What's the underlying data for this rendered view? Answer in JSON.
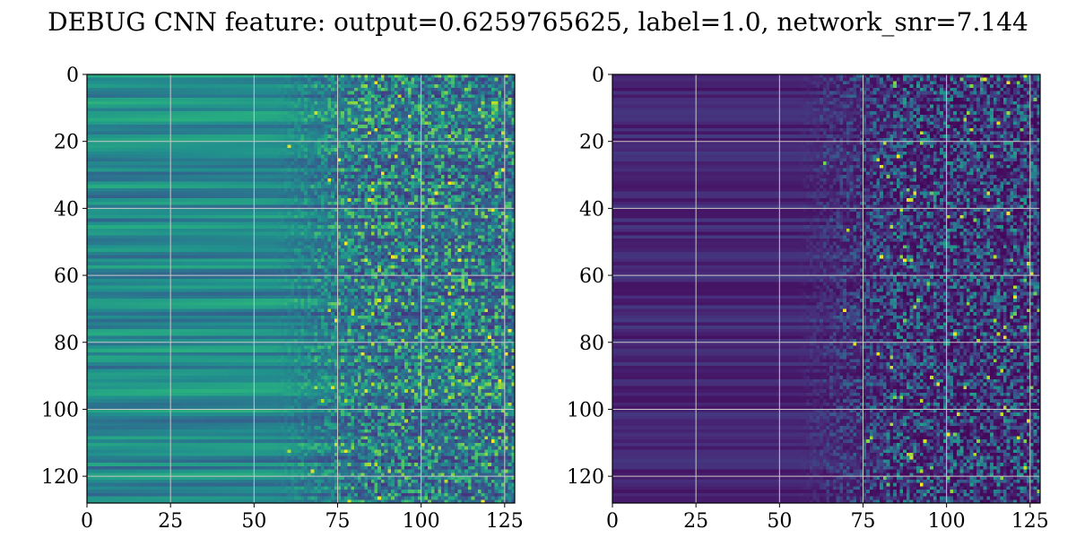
{
  "title": "DEBUG CNN feature: output=0.6259765625, label=1.0, network_snr=7.144",
  "chart_data": [
    {
      "type": "heatmap",
      "colormap": "viridis",
      "rows": 128,
      "cols": 128,
      "xlim": [
        0,
        128
      ],
      "ylim": [
        128,
        0
      ],
      "xticks": [
        0,
        25,
        50,
        75,
        100,
        125
      ],
      "yticks": [
        0,
        20,
        40,
        60,
        80,
        100,
        120
      ],
      "grid": true,
      "value_range": [
        0,
        1
      ]
    },
    {
      "type": "heatmap",
      "colormap": "viridis",
      "rows": 128,
      "cols": 128,
      "xlim": [
        0,
        128
      ],
      "ylim": [
        128,
        0
      ],
      "xticks": [
        0,
        25,
        50,
        75,
        100,
        125
      ],
      "yticks": [
        0,
        20,
        40,
        60,
        80,
        100,
        120
      ],
      "grid": true,
      "value_range": [
        0,
        1
      ]
    }
  ],
  "colors": {
    "grid": "#c8c8c8",
    "axis": "#000000"
  }
}
